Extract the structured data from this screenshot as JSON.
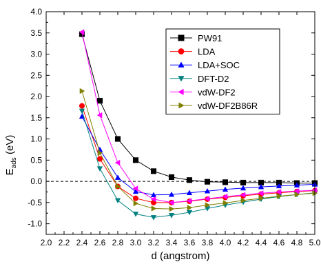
{
  "chart_data": {
    "type": "line",
    "title": "",
    "xlabel": "d (angstrom)",
    "ylabel_main": "E",
    "ylabel_sub": "ads",
    "ylabel_unit": " (eV)",
    "xlim": [
      2.0,
      5.0
    ],
    "ylim": [
      -1.25,
      4.0
    ],
    "xticks": [
      2.0,
      2.2,
      2.4,
      2.6,
      2.8,
      3.0,
      3.2,
      3.4,
      3.6,
      3.8,
      4.0,
      4.2,
      4.4,
      4.6,
      4.8,
      5.0
    ],
    "xtick_labels": [
      "2.0",
      "2.2",
      "2.4",
      "2.6",
      "2.8",
      "3.0",
      "3.2",
      "3.4",
      "3.6",
      "3.8",
      "4.0",
      "4.2",
      "4.4",
      "4.6",
      "4.8",
      "5.0"
    ],
    "yticks": [
      -1.0,
      -0.5,
      0.0,
      0.5,
      1.0,
      1.5,
      2.0,
      2.5,
      3.0,
      3.5,
      4.0
    ],
    "ytick_labels": [
      "-1.0",
      "-0.5",
      "0.0",
      "0.5",
      "1.0",
      "1.5",
      "2.0",
      "2.5",
      "3.0",
      "3.5",
      "4.0"
    ],
    "grid": false,
    "zero_line": "dashed",
    "legend_position": "top-right",
    "x": [
      2.4,
      2.6,
      2.8,
      3.0,
      3.2,
      3.4,
      3.6,
      3.8,
      4.0,
      4.2,
      4.4,
      4.6,
      4.8,
      5.0
    ],
    "series": [
      {
        "name": "PW91",
        "marker": "square",
        "color": "#000000",
        "values": [
          3.47,
          1.9,
          1.0,
          0.5,
          0.24,
          0.1,
          0.03,
          -0.01,
          -0.02,
          -0.03,
          -0.03,
          -0.03,
          -0.04,
          -0.04
        ]
      },
      {
        "name": "LDA",
        "marker": "circle",
        "color": "#ff0000",
        "values": [
          1.78,
          0.53,
          -0.12,
          -0.4,
          -0.5,
          -0.5,
          -0.47,
          -0.42,
          -0.38,
          -0.34,
          -0.3,
          -0.27,
          -0.24,
          -0.22
        ]
      },
      {
        "name": "LDA+SOC",
        "marker": "triangle-up",
        "color": "#0000ff",
        "values": [
          1.53,
          0.75,
          0.09,
          -0.24,
          -0.32,
          -0.31,
          -0.27,
          -0.23,
          -0.19,
          -0.16,
          -0.13,
          -0.11,
          -0.09,
          -0.07
        ]
      },
      {
        "name": "DFT-D2",
        "marker": "triangle-down",
        "color": "#008080",
        "values": [
          1.66,
          0.3,
          -0.45,
          -0.77,
          -0.85,
          -0.8,
          -0.73,
          -0.64,
          -0.56,
          -0.49,
          -0.42,
          -0.36,
          -0.31,
          -0.27
        ]
      },
      {
        "name": "vdW-DF2",
        "marker": "triangle-left",
        "color": "#ff00ff",
        "values": [
          3.52,
          1.56,
          0.44,
          -0.17,
          -0.42,
          -0.5,
          -0.46,
          -0.41,
          -0.36,
          -0.32,
          -0.28,
          -0.25,
          -0.23,
          -0.21
        ]
      },
      {
        "name": "vdW-DF2B86R",
        "marker": "triangle-right",
        "color": "#808000",
        "values": [
          2.13,
          0.67,
          -0.12,
          -0.52,
          -0.64,
          -0.65,
          -0.62,
          -0.56,
          -0.51,
          -0.45,
          -0.4,
          -0.35,
          -0.31,
          -0.28
        ]
      }
    ]
  }
}
